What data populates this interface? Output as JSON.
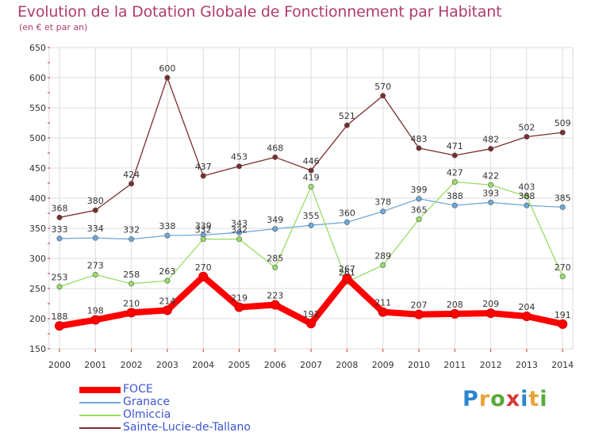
{
  "chart_data": {
    "type": "line",
    "title": "Evolution de la Dotation Globale de Fonctionnement par Habitant",
    "subtitle": "(en € et par an)",
    "categories": [
      "2000",
      "2001",
      "2002",
      "2003",
      "2004",
      "2005",
      "2006",
      "2007",
      "2008",
      "2009",
      "2010",
      "2011",
      "2012",
      "2013",
      "2014"
    ],
    "ylim": [
      150,
      650
    ],
    "yticks": [
      150,
      200,
      250,
      300,
      350,
      400,
      450,
      500,
      550,
      600,
      650
    ],
    "grid": true,
    "legend_position": "bottom-left",
    "series": [
      {
        "name": "FOCE",
        "color": "#ff0000",
        "values": [
          188,
          198,
          210,
          214,
          270,
          219,
          223,
          192,
          267,
          211,
          207,
          208,
          209,
          204,
          191
        ]
      },
      {
        "name": "Granace",
        "color": "#6fa8dc",
        "values": [
          333,
          334,
          332,
          338,
          339,
          343,
          349,
          355,
          360,
          378,
          399,
          388,
          393,
          388,
          385
        ]
      },
      {
        "name": "Olmiccia",
        "color": "#99dd66",
        "values": [
          253,
          273,
          258,
          263,
          332,
          332,
          285,
          419,
          261,
          289,
          365,
          427,
          422,
          403,
          270
        ]
      },
      {
        "name": "Sainte-Lucie-de-Tallano",
        "color": "#7a2e2e",
        "values": [
          368,
          380,
          424,
          600,
          437,
          453,
          468,
          446,
          521,
          570,
          483,
          471,
          482,
          502,
          509
        ]
      }
    ]
  },
  "logo": {
    "text": "Proxiti"
  }
}
